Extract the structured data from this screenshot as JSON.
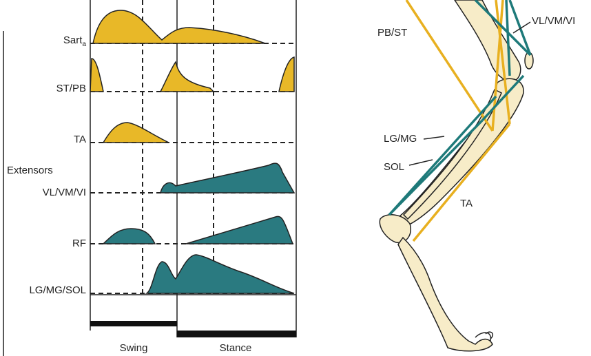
{
  "emg_panel": {
    "rows": [
      {
        "label": "Sart",
        "subscript": "a"
      },
      {
        "label": "ST/PB"
      },
      {
        "label": "TA"
      },
      {
        "label": "VL/VM/VI"
      },
      {
        "label": "RF"
      },
      {
        "label": "LG/MG/SOL"
      }
    ],
    "group_label": "Extensors",
    "phases": [
      "Swing",
      "Stance"
    ]
  },
  "leg_diagram": {
    "labels": [
      "PB/ST",
      "VL/VM/VI",
      "LG/MG",
      "SOL",
      "TA"
    ]
  }
}
